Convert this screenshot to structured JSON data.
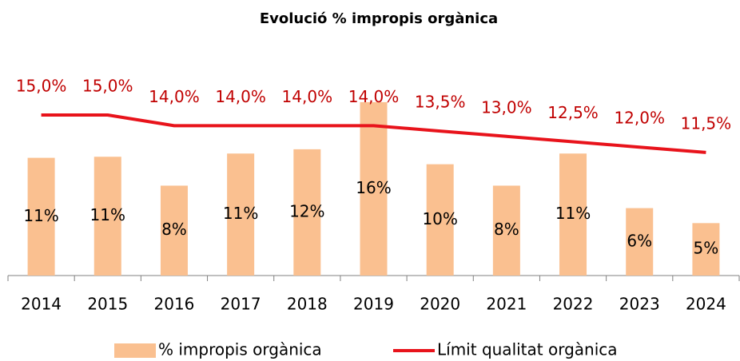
{
  "chart_data": {
    "type": "bar",
    "title": "Evolució % impropis orgànica",
    "categories": [
      "2014",
      "2015",
      "2016",
      "2017",
      "2018",
      "2019",
      "2020",
      "2021",
      "2022",
      "2023",
      "2024"
    ],
    "series": [
      {
        "name": "% impropis orgànica",
        "type": "bar",
        "color": "#fac090",
        "values": [
          11.0,
          11.1,
          8.4,
          11.4,
          11.8,
          16.2,
          10.4,
          8.4,
          11.4,
          6.3,
          4.9
        ],
        "value_labels": [
          "11%",
          "11%",
          "8%",
          "11%",
          "12%",
          "16%",
          "10%",
          "8%",
          "11%",
          "6%",
          "5%"
        ]
      },
      {
        "name": "Límit qualitat orgànica",
        "type": "line",
        "color": "#e8131b",
        "values": [
          15.0,
          15.0,
          14.0,
          14.0,
          14.0,
          14.0,
          13.5,
          13.0,
          12.5,
          12.0,
          11.5
        ],
        "value_labels": [
          "15,0%",
          "15,0%",
          "14,0%",
          "14,0%",
          "14,0%",
          "14,0%",
          "13,5%",
          "13,0%",
          "12,5%",
          "12,0%",
          "11,5%"
        ]
      }
    ],
    "legend": "bottom"
  }
}
